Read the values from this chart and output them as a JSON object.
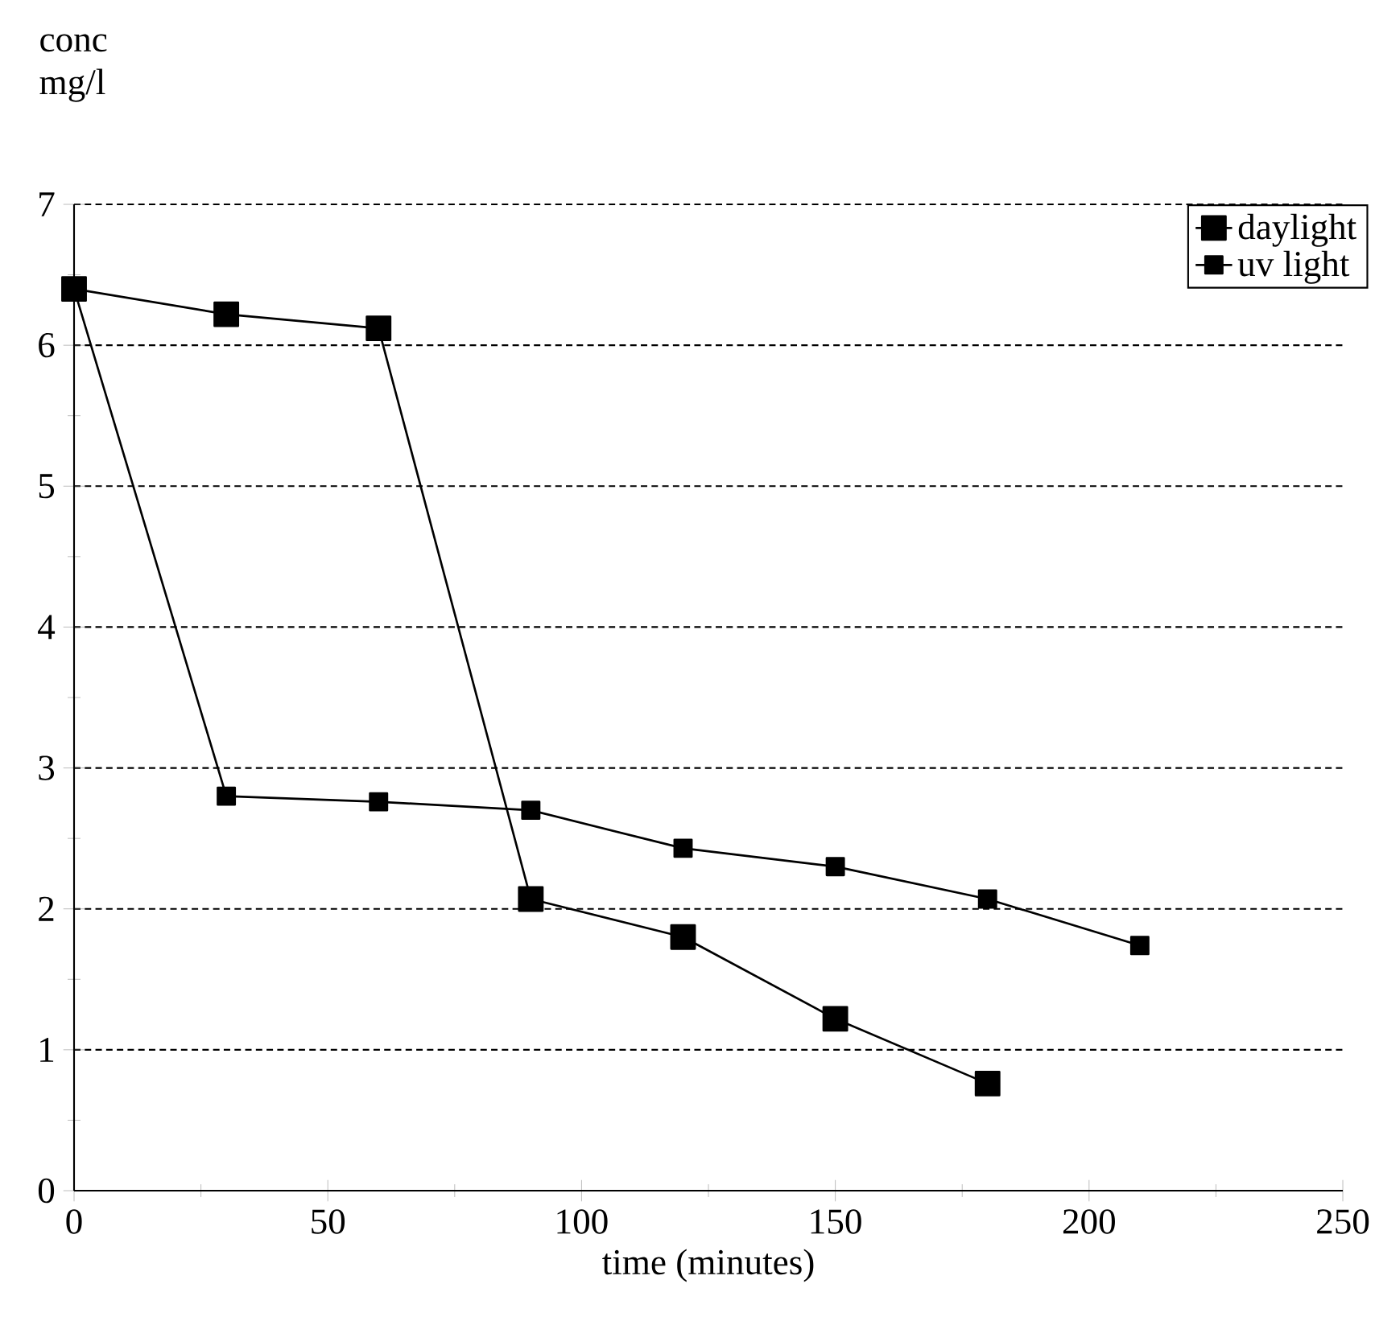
{
  "chart_data": {
    "type": "line",
    "xlabel": "time (minutes)",
    "ylabel": "conc mg/l",
    "x": [
      0,
      30,
      60,
      90,
      120,
      150,
      180,
      210
    ],
    "series": [
      {
        "name": "daylight",
        "color": "#000000",
        "values": [
          6.4,
          6.22,
          6.12,
          2.07,
          1.8,
          1.22,
          0.76,
          null
        ]
      },
      {
        "name": "uv light",
        "color": "#000000",
        "values": [
          6.4,
          2.8,
          2.76,
          2.7,
          2.43,
          2.3,
          2.07,
          1.74
        ]
      }
    ],
    "xlim": [
      0,
      250
    ],
    "ylim": [
      0,
      7
    ],
    "xticks": [
      0,
      50,
      100,
      150,
      200,
      250
    ],
    "yticks": [
      0,
      1,
      2,
      3,
      4,
      5,
      6,
      7
    ],
    "grid": "y",
    "legend": "top right",
    "marker": "square",
    "line_style": "solid"
  }
}
